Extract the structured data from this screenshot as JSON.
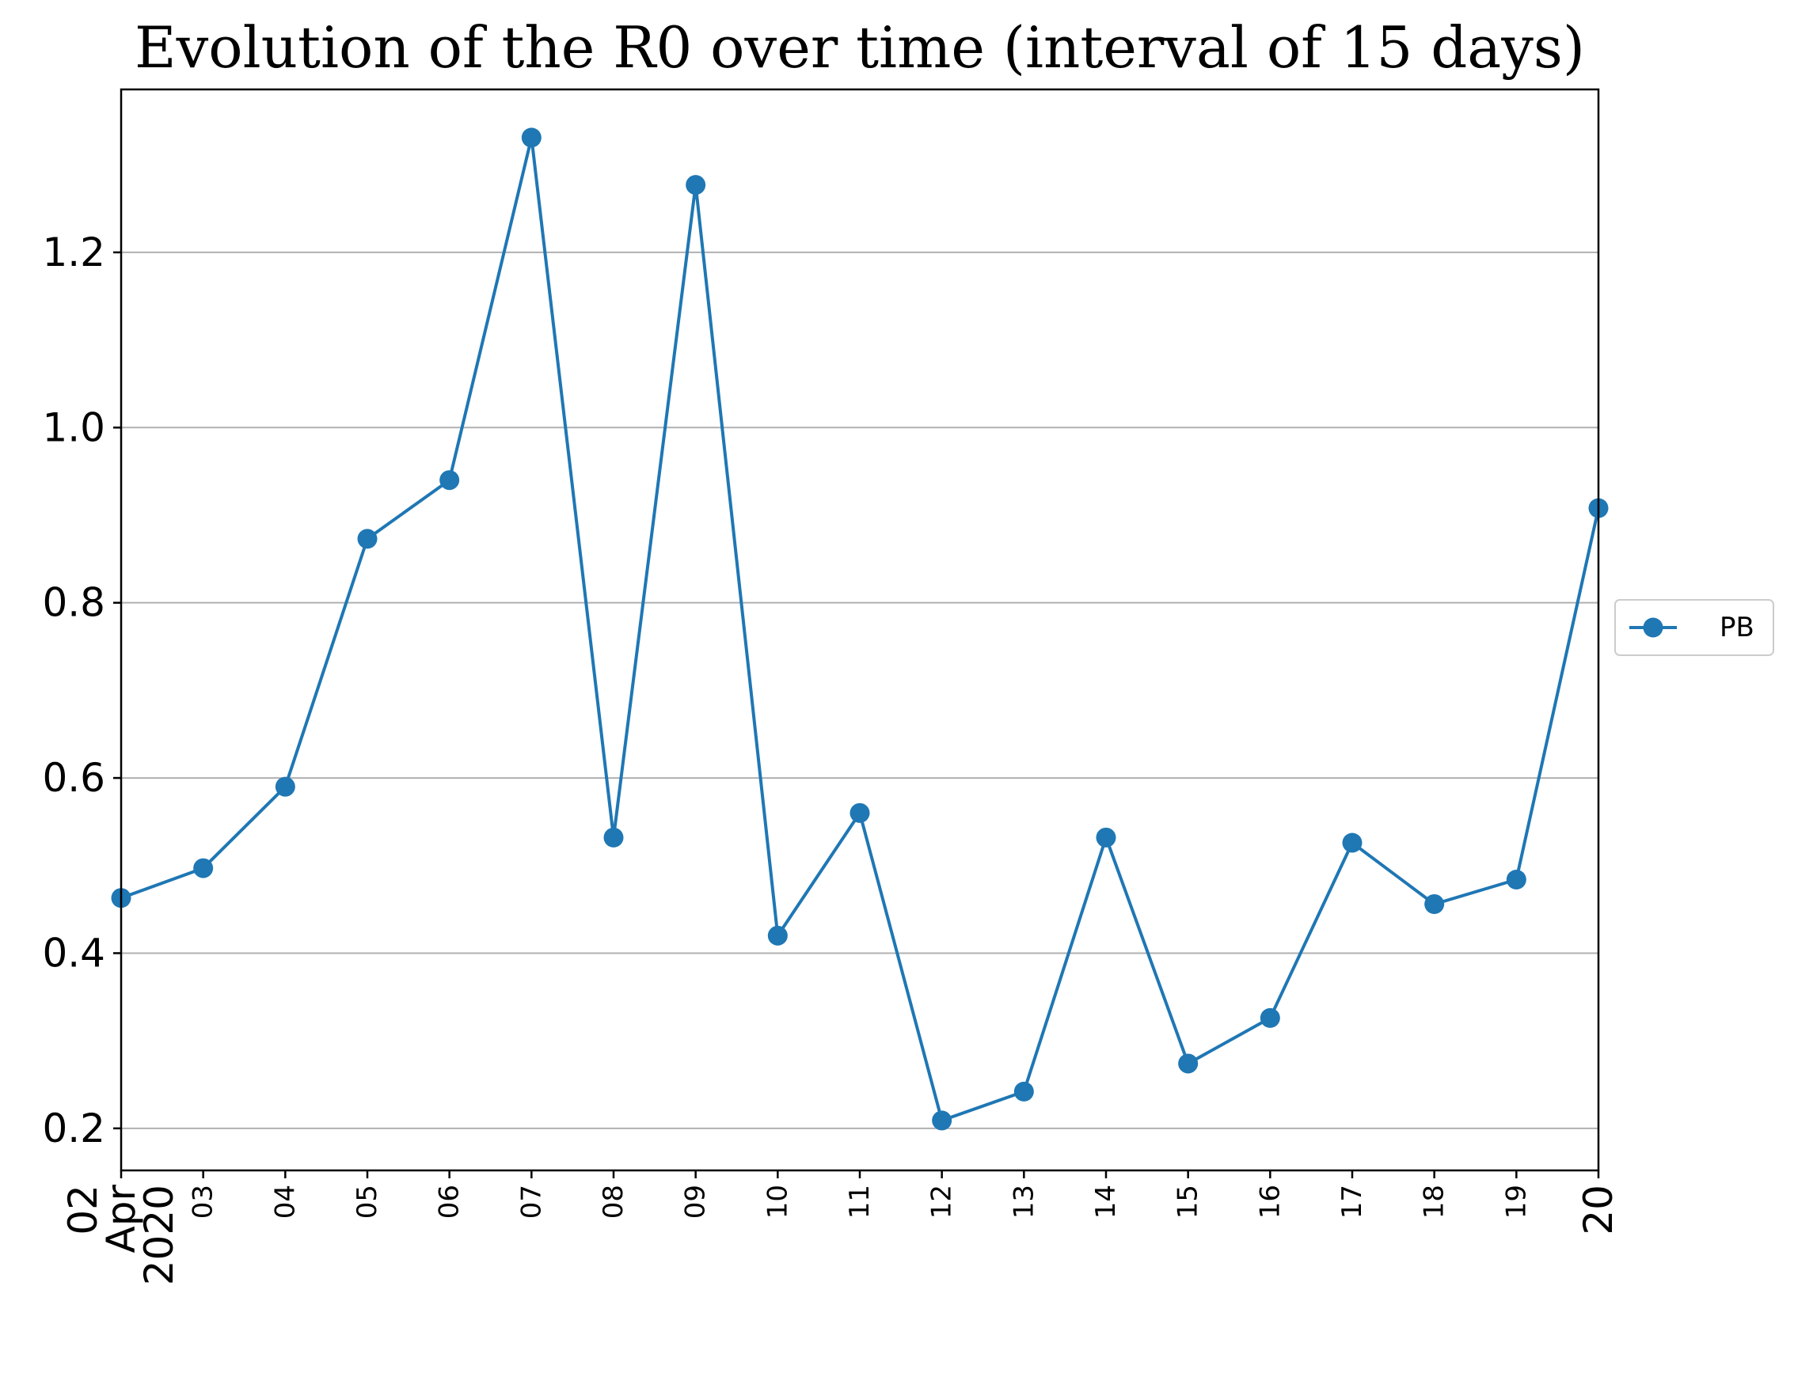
{
  "chart_data": {
    "type": "line",
    "title": "Evolution of the R0 over time (interval of 15 days)",
    "xlabel": "",
    "ylabel": "",
    "x": [
      "2020-04-02",
      "2020-04-03",
      "2020-04-04",
      "2020-04-05",
      "2020-04-06",
      "2020-04-07",
      "2020-04-08",
      "2020-04-09",
      "2020-04-10",
      "2020-04-11",
      "2020-04-12",
      "2020-04-13",
      "2020-04-14",
      "2020-04-15",
      "2020-04-16",
      "2020-04-17",
      "2020-04-18",
      "2020-04-19",
      "2020-04-20"
    ],
    "x_tick_labels": [
      {
        "lines": [
          "02",
          "Apr",
          "2020"
        ],
        "size": "large"
      },
      {
        "lines": [
          "03"
        ],
        "size": "small"
      },
      {
        "lines": [
          "04"
        ],
        "size": "small"
      },
      {
        "lines": [
          "05"
        ],
        "size": "small"
      },
      {
        "lines": [
          "06"
        ],
        "size": "small"
      },
      {
        "lines": [
          "07"
        ],
        "size": "small"
      },
      {
        "lines": [
          "08"
        ],
        "size": "small"
      },
      {
        "lines": [
          "09"
        ],
        "size": "small"
      },
      {
        "lines": [
          "10"
        ],
        "size": "small"
      },
      {
        "lines": [
          "11"
        ],
        "size": "small"
      },
      {
        "lines": [
          "12"
        ],
        "size": "small"
      },
      {
        "lines": [
          "13"
        ],
        "size": "small"
      },
      {
        "lines": [
          "14"
        ],
        "size": "small"
      },
      {
        "lines": [
          "15"
        ],
        "size": "small"
      },
      {
        "lines": [
          "16"
        ],
        "size": "small"
      },
      {
        "lines": [
          "17"
        ],
        "size": "small"
      },
      {
        "lines": [
          "18"
        ],
        "size": "small"
      },
      {
        "lines": [
          "19"
        ],
        "size": "small"
      },
      {
        "lines": [
          "20"
        ],
        "size": "large"
      }
    ],
    "series": [
      {
        "name": "PB",
        "color": "#1f77b4",
        "marker": "circle",
        "values": [
          0.463,
          0.497,
          0.59,
          0.873,
          0.94,
          1.331,
          0.532,
          1.277,
          0.42,
          0.56,
          0.209,
          0.242,
          0.532,
          0.274,
          0.326,
          0.526,
          0.456,
          0.484,
          0.908
        ]
      }
    ],
    "yticks": [
      0.2,
      0.4,
      0.6,
      0.8,
      1.0,
      1.2
    ],
    "ytick_labels": [
      "0.2",
      "0.4",
      "0.6",
      "0.8",
      "1.0",
      "1.2"
    ],
    "ylim": [
      0.152,
      1.386
    ],
    "grid": "y",
    "grid_color": "#b0b0b0",
    "legend": "center-right-outside"
  }
}
